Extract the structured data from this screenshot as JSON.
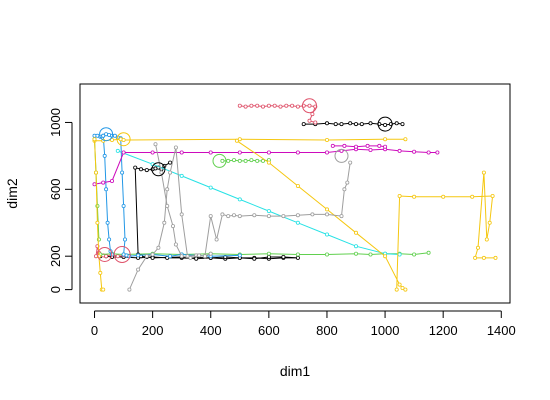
{
  "chart_data": {
    "type": "line",
    "title": "",
    "xlabel": "dim1",
    "ylabel": "dim2",
    "xlim": [
      -50,
      1430
    ],
    "ylim": [
      -80,
      1230
    ],
    "xticks": [
      0,
      200,
      400,
      600,
      800,
      1000,
      1200,
      1400
    ],
    "yticks": [
      0,
      200,
      600,
      1000
    ],
    "grid": false,
    "legend": "none",
    "series": [
      {
        "color": "#000000",
        "x": [
          20,
          40,
          60,
          100,
          150,
          200,
          250,
          300,
          350,
          400,
          450,
          500,
          550,
          600,
          650,
          700,
          650,
          600,
          550,
          500,
          450,
          400,
          300,
          200,
          180,
          160,
          150,
          140,
          160,
          180,
          200,
          210,
          220,
          230,
          240,
          260
        ],
        "y": [
          200,
          200,
          195,
          195,
          190,
          195,
          190,
          190,
          185,
          190,
          185,
          190,
          190,
          185,
          190,
          190,
          195,
          195,
          185,
          190,
          195,
          190,
          195,
          190,
          195,
          200,
          210,
          730,
          720,
          715,
          720,
          725,
          730,
          720,
          740,
          760
        ]
      },
      {
        "color": "#000000",
        "x": [
          720,
          760,
          800,
          830,
          850,
          880,
          900,
          920,
          950,
          980,
          1000,
          1020,
          1040,
          1060
        ],
        "y": [
          990,
          990,
          995,
          990,
          990,
          995,
          990,
          990,
          995,
          990,
          985,
          990,
          995,
          990
        ]
      },
      {
        "color": "#DF536B",
        "x": [
          500,
          520,
          540,
          560,
          580,
          600,
          620,
          640,
          660,
          680,
          700,
          720,
          740,
          760,
          750,
          740,
          760
        ],
        "y": [
          1100,
          1095,
          1100,
          1100,
          1095,
          1100,
          1100,
          1095,
          1100,
          1100,
          1095,
          1100,
          1100,
          1095,
          1050,
          1010,
          1000
        ]
      },
      {
        "color": "#DF536B",
        "x": [
          5,
          10,
          15,
          20,
          30,
          40,
          60,
          80,
          100
        ],
        "y": [
          200,
          260,
          220,
          210,
          205,
          200,
          210,
          200,
          205
        ]
      },
      {
        "color": "#61D04F",
        "x": [
          20,
          60,
          100,
          200,
          300,
          400,
          500,
          600,
          700,
          800,
          900,
          950,
          1000,
          1050,
          1100,
          1150
        ],
        "y": [
          210,
          215,
          210,
          215,
          210,
          215,
          210,
          215,
          210,
          210,
          215,
          210,
          215,
          215,
          210,
          220
        ]
      },
      {
        "color": "#61D04F",
        "x": [
          0,
          5,
          10,
          15
        ],
        "y": [
          900,
          700,
          500,
          300
        ]
      },
      {
        "color": "#61D04F",
        "x": [
          440,
          460,
          480,
          500,
          520,
          540,
          560,
          580,
          600
        ],
        "y": [
          770,
          770,
          775,
          770,
          770,
          775,
          770,
          770,
          775
        ]
      },
      {
        "color": "#2297E6",
        "x": [
          0,
          10,
          20,
          30,
          40,
          50,
          60,
          70,
          80,
          90,
          95,
          100,
          105,
          100,
          110,
          120,
          150,
          200,
          260,
          300,
          400,
          500
        ],
        "y": [
          920,
          920,
          915,
          920,
          930,
          925,
          920,
          920,
          910,
          905,
          700,
          500,
          300,
          210,
          205,
          200,
          205,
          210,
          200,
          210,
          200,
          205
        ]
      },
      {
        "color": "#2297E6",
        "x": [
          30,
          35,
          40,
          45,
          50,
          55,
          60
        ],
        "y": [
          920,
          800,
          600,
          400,
          300,
          230,
          210
        ]
      },
      {
        "color": "#28E2E5",
        "x": [
          80,
          200,
          300,
          400,
          500,
          600,
          700,
          800,
          900,
          1000,
          1050
        ],
        "y": [
          830,
          750,
          680,
          610,
          540,
          470,
          400,
          330,
          260,
          215,
          210
        ]
      },
      {
        "color": "#CD0BBC",
        "x": [
          0,
          30,
          60,
          100,
          200,
          300,
          400,
          500,
          600,
          700,
          800,
          850,
          900,
          950,
          1000,
          1050,
          1100,
          1150,
          1180
        ],
        "y": [
          630,
          640,
          650,
          820,
          820,
          820,
          820,
          820,
          820,
          820,
          820,
          830,
          840,
          835,
          840,
          830,
          825,
          820,
          820
        ]
      },
      {
        "color": "#CD0BBC",
        "x": [
          820,
          860,
          900,
          940,
          980,
          1000
        ],
        "y": [
          860,
          860,
          855,
          860,
          860,
          855
        ]
      },
      {
        "color": "#F5C710",
        "x": [
          0,
          30,
          60,
          90,
          100,
          500,
          800,
          1000,
          1070
        ],
        "y": [
          890,
          890,
          895,
          900,
          895,
          900,
          895,
          900,
          900
        ]
      },
      {
        "color": "#F5C710",
        "x": [
          490,
          600,
          700,
          800,
          900,
          1000,
          1050,
          1060,
          1070
        ],
        "y": [
          890,
          760,
          620,
          480,
          340,
          200,
          30,
          10,
          0
        ]
      },
      {
        "color": "#F5C710",
        "x": [
          0,
          5,
          10,
          15,
          20,
          25,
          30
        ],
        "y": [
          900,
          700,
          400,
          200,
          100,
          0,
          0
        ]
      },
      {
        "color": "#F5C710",
        "x": [
          1040,
          1050,
          1100,
          1200,
          1300,
          1370,
          1360,
          1350,
          1340,
          1320,
          1310,
          1340,
          1380
        ],
        "y": [
          0,
          560,
          555,
          555,
          555,
          560,
          400,
          300,
          700,
          250,
          190,
          190,
          190
        ]
      },
      {
        "color": "#9E9E9E",
        "x": [
          120,
          150,
          180,
          200,
          220,
          240,
          250,
          260,
          280,
          300,
          320,
          350,
          380,
          400,
          420,
          440,
          460,
          480,
          500,
          550,
          600,
          650,
          700,
          750,
          800,
          850,
          860,
          870,
          880
        ],
        "y": [
          0,
          120,
          200,
          210,
          250,
          400,
          600,
          700,
          850,
          450,
          200,
          205,
          200,
          440,
          300,
          450,
          440,
          445,
          440,
          445,
          440,
          440,
          445,
          450,
          450,
          440,
          600,
          640,
          760
        ]
      },
      {
        "color": "#9E9E9E",
        "x": [
          210,
          230,
          250,
          270,
          280,
          300,
          330,
          360,
          380,
          400
        ],
        "y": [
          870,
          700,
          500,
          380,
          270,
          200,
          190,
          205,
          200,
          215
        ]
      }
    ],
    "highlights": [
      {
        "x": 35,
        "y": 210,
        "r": 14,
        "color": "#DF536B"
      },
      {
        "x": 95,
        "y": 210,
        "r": 16,
        "color": "#DF536B"
      },
      {
        "x": 740,
        "y": 1100,
        "r": 14,
        "color": "#DF536B"
      },
      {
        "x": 1000,
        "y": 990,
        "r": 14,
        "color": "#000000"
      },
      {
        "x": 220,
        "y": 720,
        "r": 13,
        "color": "#000000"
      },
      {
        "x": 430,
        "y": 770,
        "r": 13,
        "color": "#61D04F"
      },
      {
        "x": 40,
        "y": 930,
        "r": 13,
        "color": "#2297E6"
      },
      {
        "x": 100,
        "y": 900,
        "r": 13,
        "color": "#F5C710"
      },
      {
        "x": 850,
        "y": 800,
        "r": 13,
        "color": "#9E9E9E"
      }
    ]
  }
}
